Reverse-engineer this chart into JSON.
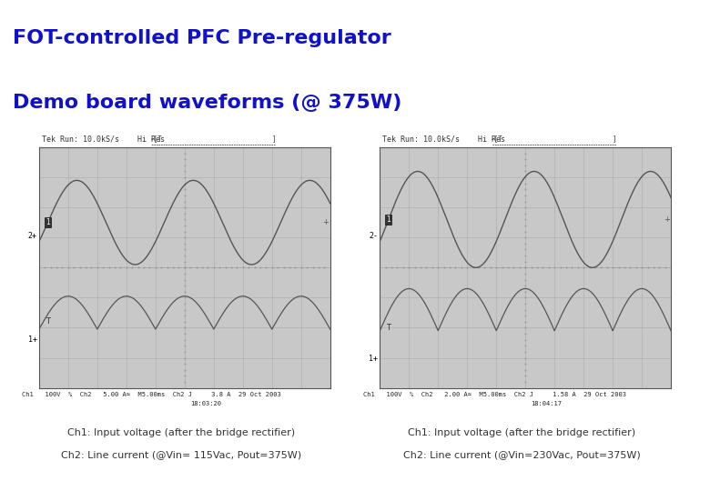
{
  "title_line1": "FOT-controlled PFC Pre-regulator",
  "title_line2": "Demo board waveforms (@ 375W)",
  "title_color": "#1111CC",
  "title_fontsize": 16,
  "bg_color": "#ffffff",
  "separator_color": "#888888",
  "scope_bg": "#c8c8c8",
  "scope_grid_color": "#999999",
  "left_caption1": "Ch1: Input voltage (after the bridge rectifier)",
  "left_caption2": "Ch2: Line current (@Vin= 115Vac, Pout=375W)",
  "right_caption1": "Ch1: Input voltage (after the bridge rectifier)",
  "right_caption2": "Ch2: Line current (@Vin=230Vac, Pout=375W)",
  "left_header": "Tek Run: 10.0kS/s    Hi Res",
  "right_header": "Tek Run: 10.0kS/s    Hi Res",
  "left_footer_line1": "Ch1   100V  %  Ch2   5.00 A≈  M5.00ms  Ch2 J     3.8 A  29 Oct 2003",
  "left_footer_line2": "                                                          18:03:20",
  "right_footer_line1": "Ch1   100V  %  Ch2   2.00 A≈  M5.00ms  Ch2 J     1.58 A  29 Oct 2003",
  "right_footer_line2": "                                                           18:04:17",
  "caption_fontsize": 8
}
